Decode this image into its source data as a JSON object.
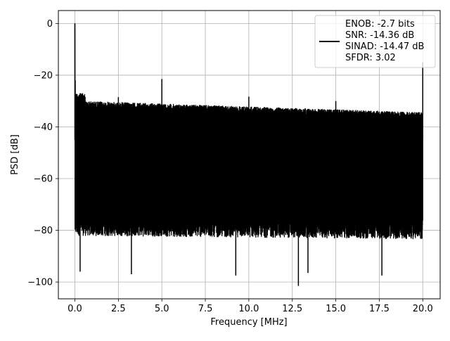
{
  "chart_data": {
    "type": "line",
    "title": "",
    "xlabel": "Frequency [MHz]",
    "ylabel": "PSD [dB]",
    "xlim": [
      -0.95,
      21.0
    ],
    "ylim": [
      -106.5,
      5.0
    ],
    "grid": true,
    "legend_position": "top-right",
    "line_color": "#000000",
    "x_ticks": [
      {
        "value": 0.0,
        "label": "0.0"
      },
      {
        "value": 2.5,
        "label": "2.5"
      },
      {
        "value": 5.0,
        "label": "5.0"
      },
      {
        "value": 7.5,
        "label": "7.5"
      },
      {
        "value": 10.0,
        "label": "10.0"
      },
      {
        "value": 12.5,
        "label": "12.5"
      },
      {
        "value": 15.0,
        "label": "15.0"
      },
      {
        "value": 17.5,
        "label": "17.5"
      },
      {
        "value": 20.0,
        "label": "20.0"
      }
    ],
    "y_ticks": [
      {
        "value": 0,
        "label": "0"
      },
      {
        "value": -20,
        "label": "−20"
      },
      {
        "value": -40,
        "label": "−40"
      },
      {
        "value": -60,
        "label": "−60"
      },
      {
        "value": -80,
        "label": "−80"
      },
      {
        "value": -100,
        "label": "−100"
      }
    ],
    "legend_lines": [
      "ENOB: -2.7 bits",
      "SNR: -14.36 dB",
      "SINAD: -14.47 dB",
      "SFDR: 3.02"
    ],
    "series": [
      {
        "x_range": [
          0.0,
          20.0
        ],
        "noise_floor_db": [
          -78,
          -30
        ],
        "peaks": [
          {
            "x": 0.0,
            "y": 0.0
          },
          {
            "x": 0.02,
            "y": -22
          },
          {
            "x": 2.5,
            "y": -28.5
          },
          {
            "x": 5.0,
            "y": -21.5
          },
          {
            "x": 10.0,
            "y": -28.3
          },
          {
            "x": 15.0,
            "y": -30.0
          },
          {
            "x": 20.0,
            "y": -15.0
          }
        ],
        "dips": [
          {
            "x": 0.3,
            "y": -96
          },
          {
            "x": 3.25,
            "y": -97
          },
          {
            "x": 9.25,
            "y": -97.5
          },
          {
            "x": 12.85,
            "y": -101.5
          },
          {
            "x": 13.4,
            "y": -96.5
          },
          {
            "x": 17.65,
            "y": -97.5
          }
        ]
      }
    ]
  }
}
